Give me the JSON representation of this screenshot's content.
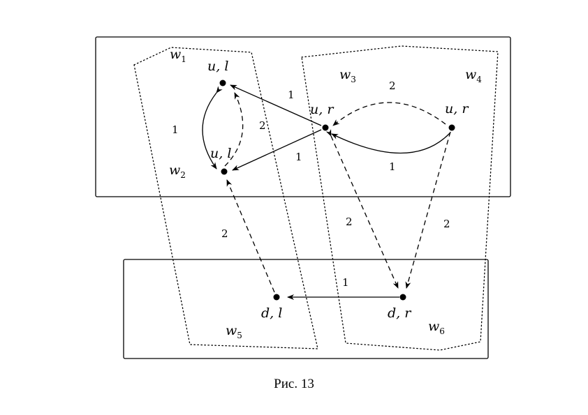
{
  "caption": "Рис. 13",
  "nodes": {
    "ul_top": "u, l",
    "ul_bottom": "u, l",
    "ur_left": "u, r",
    "ur_right": "u, r",
    "dl": "d, l",
    "dr": "d, r"
  },
  "regions": {
    "w1": {
      "base": "w",
      "sub": "1"
    },
    "w2": {
      "base": "w",
      "sub": "2"
    },
    "w3": {
      "base": "w",
      "sub": "3"
    },
    "w4": {
      "base": "w",
      "sub": "4"
    },
    "w5": {
      "base": "w",
      "sub": "5"
    },
    "w6": {
      "base": "w",
      "sub": "6"
    }
  },
  "edge_labels": {
    "ul_loop_solid": "1",
    "ul_loop_dashed": "2",
    "ur_to_ul_top": "1",
    "ur_to_ul_bottom": "1",
    "ur_loop_dashed": "2",
    "ur_loop_solid": "1",
    "dl_to_ul": "2",
    "ur_to_dr": "2",
    "ur_right_to_dr": "2",
    "dr_to_dl": "1"
  }
}
